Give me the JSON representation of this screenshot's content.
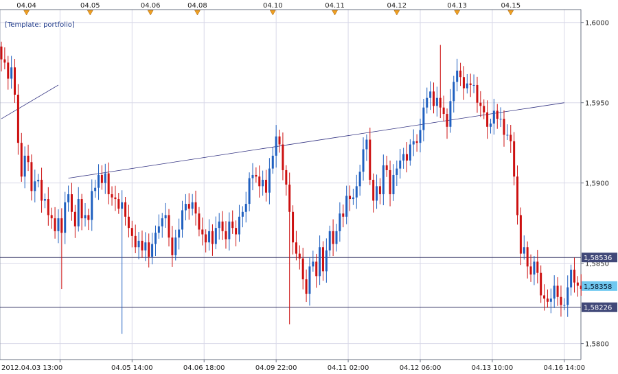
{
  "template_label": "[Template: portfolio]",
  "event_markers": {
    "labels": [
      "04.04",
      "04.05",
      "04.06",
      "04.08",
      "04.10",
      "04.11",
      "04.12",
      "04.13",
      "04.15"
    ],
    "marker_color": "#f0a020"
  },
  "chart_data": {
    "type": "candlestick",
    "symbol_note": "",
    "x_tick_labels": [
      "2012.04.03 13:00",
      "04.05 14:00",
      "04.06 18:00",
      "04.09 22:00",
      "04.11 02:00",
      "04.12 06:00",
      "04.13 10:00",
      "04.16 14:00"
    ],
    "y_tick_labels": [
      "1,6000",
      "1,5950",
      "1,5900",
      "1,5850",
      "1,5800"
    ],
    "ylim": [
      1.579,
      1.6008
    ],
    "horizontal_levels": [
      {
        "label": "1,58536",
        "value": 1.58536,
        "style": "line"
      },
      {
        "label": "1,58226",
        "value": 1.58226,
        "style": "line"
      },
      {
        "label": "1,58358",
        "value": 1.58358,
        "style": "current"
      }
    ],
    "trendlines": [
      {
        "from": [
          0,
          1.594
        ],
        "to": [
          17,
          1.5961
        ]
      },
      {
        "from": [
          20,
          1.5903
        ],
        "to": [
          168,
          1.595
        ]
      }
    ],
    "closes": [
      1.5977,
      1.5975,
      1.5965,
      1.5972,
      1.5955,
      1.5925,
      1.5904,
      1.5917,
      1.5913,
      1.5895,
      1.5901,
      1.5902,
      1.5889,
      1.589,
      1.588,
      1.5878,
      1.587,
      1.5878,
      1.5869,
      1.5888,
      1.5893,
      1.5882,
      1.5873,
      1.589,
      1.5878,
      1.588,
      1.5877,
      1.5895,
      1.5897,
      1.5905,
      1.59,
      1.5906,
      1.5893,
      1.5891,
      1.589,
      1.5884,
      1.5888,
      1.5879,
      1.5872,
      1.5867,
      1.586,
      1.5864,
      1.5858,
      1.5863,
      1.5854,
      1.5862,
      1.5869,
      1.5873,
      1.5878,
      1.588,
      1.5866,
      1.5855,
      1.5866,
      1.5871,
      1.5883,
      1.5887,
      1.5884,
      1.5888,
      1.5881,
      1.5871,
      1.5868,
      1.5863,
      1.587,
      1.5862,
      1.5872,
      1.5876,
      1.587,
      1.5865,
      1.5876,
      1.5872,
      1.5868,
      1.5879,
      1.5882,
      1.5887,
      1.5903,
      1.5905,
      1.5904,
      1.5898,
      1.5902,
      1.5894,
      1.5909,
      1.5917,
      1.5929,
      1.5924,
      1.5908,
      1.5899,
      1.5882,
      1.5863,
      1.5856,
      1.5853,
      1.584,
      1.5831,
      1.5848,
      1.5851,
      1.5842,
      1.586,
      1.5845,
      1.5858,
      1.587,
      1.5862,
      1.587,
      1.5881,
      1.5879,
      1.5892,
      1.589,
      1.5891,
      1.5898,
      1.5907,
      1.5921,
      1.5927,
      1.5902,
      1.5889,
      1.5898,
      1.5893,
      1.5911,
      1.5908,
      1.5893,
      1.5905,
      1.5909,
      1.5914,
      1.5918,
      1.5914,
      1.5924,
      1.5926,
      1.5925,
      1.5933,
      1.5947,
      1.5953,
      1.5957,
      1.5948,
      1.5953,
      1.5947,
      1.5943,
      1.5935,
      1.5951,
      1.5963,
      1.597,
      1.5966,
      1.5959,
      1.5962,
      1.5961,
      1.5961,
      1.595,
      1.5948,
      1.5944,
      1.5935,
      1.5937,
      1.5945,
      1.594,
      1.594,
      1.593,
      1.593,
      1.5926,
      1.5904,
      1.588,
      1.5856,
      1.586,
      1.5848,
      1.5843,
      1.5851,
      1.5844,
      1.583,
      1.5828,
      1.5826,
      1.5828,
      1.5836,
      1.5829,
      1.5824,
      1.5824,
      1.5835,
      1.5846,
      1.5838,
      1.5836,
      1.5834
    ]
  },
  "colors": {
    "up": "#2060c0",
    "down": "#cc1010",
    "grid": "#d8d8e8",
    "trendline": "#303080",
    "level_line": "#303060",
    "level_label_bg": "#404878",
    "current_label_bg": "#70c8f0"
  }
}
